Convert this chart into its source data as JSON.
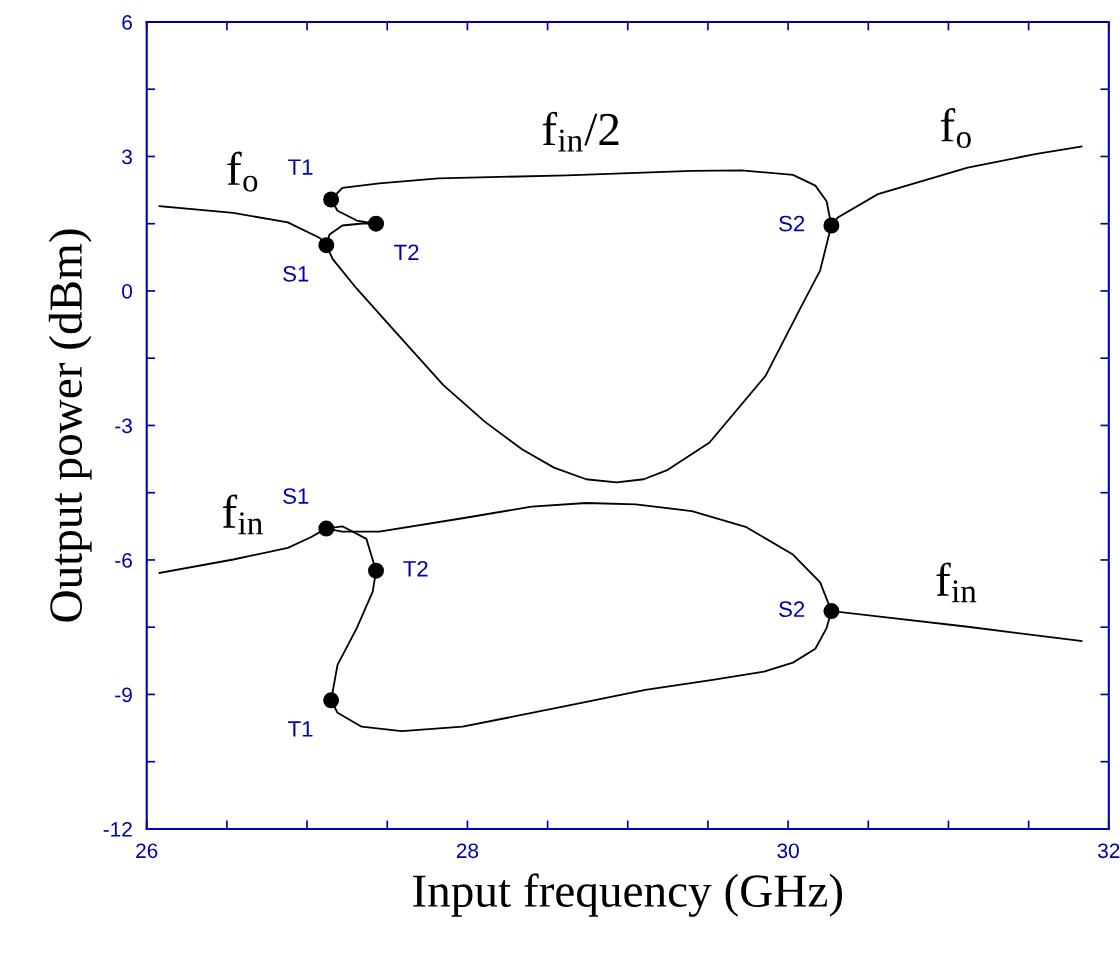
{
  "chart_data": {
    "type": "line",
    "xlabel": "Input frequency (GHz)",
    "ylabel": "Output power (dBm)",
    "xlim": [
      26,
      32
    ],
    "ylim": [
      -12,
      6
    ],
    "xticks": [
      26,
      {
        "value": 26.5,
        "label": null
      },
      {
        "value": 27,
        "label": null
      },
      {
        "value": 27.5,
        "label": null
      },
      28,
      {
        "value": 28.5,
        "label": null
      },
      {
        "value": 29,
        "label": null
      },
      {
        "value": 29.5,
        "label": null
      },
      30,
      {
        "value": 30.5,
        "label": null
      },
      {
        "value": 31,
        "label": null
      },
      {
        "value": 31.5,
        "label": null
      },
      32
    ],
    "yticks": [
      -12,
      {
        "value": -10.5,
        "label": null
      },
      -9,
      {
        "value": -7.5,
        "label": null
      },
      -6,
      {
        "value": -4.5,
        "label": null
      },
      -3,
      {
        "value": -1.5,
        "label": null
      },
      0,
      {
        "value": 1.5,
        "label": null
      },
      3,
      {
        "value": 4.5,
        "label": null
      },
      6
    ],
    "grid": false,
    "line_style": "solid",
    "series": [
      {
        "name": "f$_{o}$",
        "color": "#000000",
        "x": [
          26.08,
          26.54,
          26.88,
          27.08,
          27.12
        ],
        "values": [
          1.89,
          1.74,
          1.53,
          1.18,
          1.02
        ]
      },
      {
        "color": "#000000",
        "x": [
          27.12,
          27.14,
          27.22,
          27.36,
          27.43
        ],
        "values": [
          1.02,
          1.26,
          1.46,
          1.51,
          1.5
        ]
      },
      {
        "color": "#000000",
        "x": [
          27.15,
          27.19,
          27.31,
          27.43
        ],
        "values": [
          2.04,
          1.79,
          1.57,
          1.5
        ]
      },
      {
        "name": "f$_{in}$/2",
        "color": "#000000",
        "x": [
          27.15,
          27.22,
          27.45,
          27.82,
          28.62,
          29.4,
          29.71,
          30.03,
          30.17,
          30.24,
          30.27
        ],
        "values": [
          2.04,
          2.3,
          2.4,
          2.51,
          2.58,
          2.68,
          2.69,
          2.59,
          2.35,
          2.0,
          1.46
        ]
      },
      {
        "color": "#000000",
        "x": [
          27.12,
          27.16,
          27.31,
          27.54,
          27.85,
          28.11,
          28.34,
          28.54,
          28.74,
          28.93,
          29.1,
          29.25,
          29.51,
          29.86,
          30.08,
          30.2,
          30.25,
          30.27
        ],
        "values": [
          1.02,
          0.71,
          0.05,
          -0.87,
          -2.1,
          -2.92,
          -3.53,
          -3.94,
          -4.2,
          -4.27,
          -4.2,
          -3.99,
          -3.38,
          -1.89,
          -0.36,
          0.46,
          1.18,
          1.46
        ]
      },
      {
        "name": "f$_{o}$",
        "color": "#000000",
        "x": [
          30.27,
          30.31,
          30.56,
          31.12,
          31.54,
          31.83
        ],
        "values": [
          1.46,
          1.64,
          2.16,
          2.75,
          3.05,
          3.22
        ]
      },
      {
        "name": "f$_{in}$",
        "color": "#000000",
        "x": [
          26.08,
          26.54,
          26.88,
          27.02,
          27.12
        ],
        "values": [
          -6.29,
          -5.99,
          -5.73,
          -5.5,
          -5.3
        ]
      },
      {
        "color": "#000000",
        "x": [
          27.12,
          27.22,
          27.45,
          27.97,
          28.4,
          28.74,
          29.05,
          29.4,
          29.74,
          30.03,
          30.2,
          30.27
        ],
        "values": [
          -5.3,
          -5.37,
          -5.37,
          -5.07,
          -4.81,
          -4.73,
          -4.76,
          -4.91,
          -5.27,
          -5.88,
          -6.5,
          -7.14
        ]
      },
      {
        "name": "f$_{in}$",
        "color": "#000000",
        "x": [
          30.27,
          31.12,
          31.83
        ],
        "values": [
          -7.14,
          -7.49,
          -7.81
        ]
      },
      {
        "color": "#000000",
        "x": [
          27.12,
          27.22,
          27.37,
          27.43,
          27.41,
          27.31,
          27.19,
          27.15
        ],
        "values": [
          -5.3,
          -5.25,
          -5.53,
          -6.24,
          -6.7,
          -7.52,
          -8.34,
          -9.13
        ]
      },
      {
        "color": "#000000",
        "x": [
          27.15,
          27.19,
          27.34,
          27.59,
          27.97,
          28.25,
          28.68,
          29.11,
          29.54,
          29.85,
          30.03,
          30.17,
          30.24,
          30.27
        ],
        "values": [
          -9.13,
          -9.41,
          -9.72,
          -9.82,
          -9.72,
          -9.52,
          -9.21,
          -8.9,
          -8.67,
          -8.49,
          -8.29,
          -7.98,
          -7.52,
          -7.14
        ]
      },
      {
        "type": "scatter",
        "color": "#000000",
        "marker": "circle",
        "x": [
          27.12,
          27.15,
          27.43,
          30.27,
          27.12,
          27.43,
          27.15,
          30.27
        ],
        "values": [
          1.02,
          2.04,
          1.5,
          1.46,
          -5.3,
          -6.24,
          -9.13,
          -7.14
        ],
        "value_labels": [
          "S1",
          "T1",
          "T2",
          "S2",
          "S1",
          "T2",
          "T1",
          "S2"
        ]
      }
    ]
  }
}
